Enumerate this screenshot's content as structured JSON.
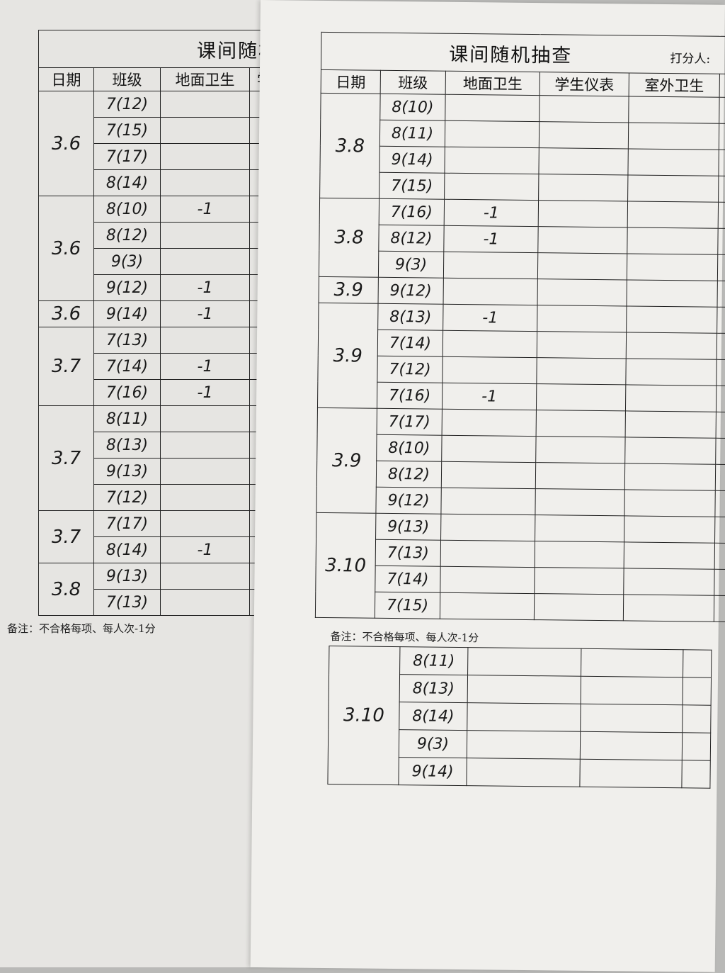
{
  "left_sheet": {
    "title": "课间随机",
    "headers": [
      "日期",
      "班级",
      "地面卫生",
      "学"
    ],
    "groups": [
      {
        "date": "3.6",
        "rows": [
          {
            "class": "7(12)",
            "ground": ""
          },
          {
            "class": "7(15)",
            "ground": ""
          },
          {
            "class": "7(17)",
            "ground": ""
          },
          {
            "class": "8(14)",
            "ground": ""
          }
        ]
      },
      {
        "date": "3.6",
        "rows": [
          {
            "class": "8(10)",
            "ground": "-1"
          },
          {
            "class": "8(12)",
            "ground": ""
          },
          {
            "class": "9(3)",
            "ground": ""
          },
          {
            "class": "9(12)",
            "ground": "-1"
          }
        ]
      },
      {
        "date": "3.6",
        "rows": [
          {
            "class": "9(14)",
            "ground": "-1"
          }
        ]
      },
      {
        "date": "3.7",
        "rows": [
          {
            "class": "7(13)",
            "ground": ""
          },
          {
            "class": "7(14)",
            "ground": "-1"
          },
          {
            "class": "7(16)",
            "ground": "-1"
          }
        ]
      },
      {
        "date": "3.7",
        "rows": [
          {
            "class": "8(11)",
            "ground": ""
          },
          {
            "class": "8(13)",
            "ground": ""
          },
          {
            "class": "9(13)",
            "ground": ""
          },
          {
            "class": "7(12)",
            "ground": ""
          }
        ]
      },
      {
        "date": "3.7",
        "rows": [
          {
            "class": "7(17)",
            "ground": ""
          },
          {
            "class": "8(14)",
            "ground": "-1"
          }
        ]
      },
      {
        "date": "3.8",
        "rows": [
          {
            "class": "9(13)",
            "ground": ""
          },
          {
            "class": "7(13)",
            "ground": ""
          }
        ]
      }
    ],
    "note": "备注：不合格每项、每人次-1分"
  },
  "right_sheet": {
    "title": "课间随机抽查",
    "scorer_label": "打分人:",
    "headers": [
      "日期",
      "班级",
      "地面卫生",
      "学生仪表",
      "室外卫生"
    ],
    "groups": [
      {
        "date": "3.8",
        "rows": [
          {
            "class": "8(10)",
            "ground": ""
          },
          {
            "class": "8(11)",
            "ground": ""
          },
          {
            "class": "9(14)",
            "ground": ""
          },
          {
            "class": "7(15)",
            "ground": ""
          }
        ]
      },
      {
        "date": "3.8",
        "rows": [
          {
            "class": "7(16)",
            "ground": "-1"
          },
          {
            "class": "8(12)",
            "ground": "-1"
          },
          {
            "class": "9(3)",
            "ground": ""
          }
        ]
      },
      {
        "date": "3.9",
        "rows": [
          {
            "class": "9(12)",
            "ground": ""
          }
        ]
      },
      {
        "date": "3.9",
        "rows": [
          {
            "class": "8(13)",
            "ground": "-1"
          },
          {
            "class": "7(14)",
            "ground": ""
          },
          {
            "class": "7(12)",
            "ground": ""
          },
          {
            "class": "7(16)",
            "ground": "-1"
          }
        ]
      },
      {
        "date": "3.9",
        "rows": [
          {
            "class": "7(17)",
            "ground": ""
          },
          {
            "class": "8(10)",
            "ground": ""
          },
          {
            "class": "8(12)",
            "ground": ""
          },
          {
            "class": "9(12)",
            "ground": ""
          }
        ]
      },
      {
        "date": "3.10",
        "rows": [
          {
            "class": "9(13)",
            "ground": ""
          },
          {
            "class": "7(13)",
            "ground": ""
          },
          {
            "class": "7(14)",
            "ground": ""
          },
          {
            "class": "7(15)",
            "ground": ""
          }
        ]
      }
    ],
    "note": "备注：不合格每项、每人次-1分",
    "continuation": {
      "date": "3.10",
      "rows": [
        {
          "class": "8(11)"
        },
        {
          "class": "8(13)"
        },
        {
          "class": "8(14)"
        },
        {
          "class": "9(3)"
        },
        {
          "class": "9(14)"
        }
      ]
    }
  }
}
